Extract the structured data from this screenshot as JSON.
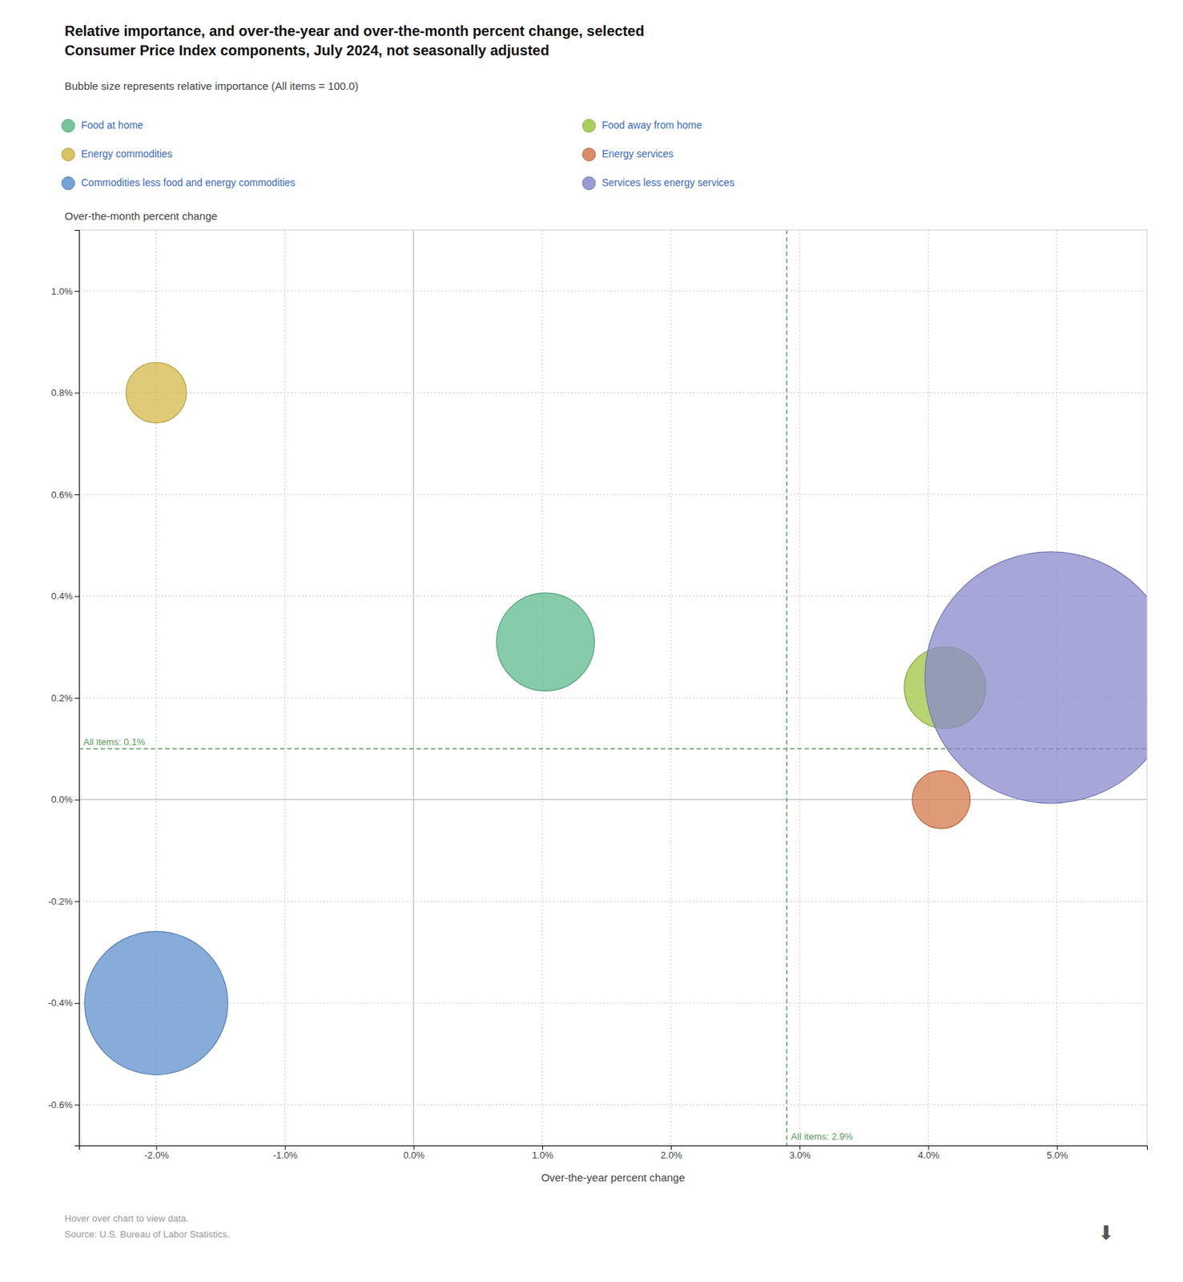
{
  "chart_data": {
    "type": "bubble",
    "title": "Relative importance, and over-the-year and over-the-month percent change, selected\nConsumer Price Index components, July 2024, not seasonally adjusted",
    "subtitle": "Bubble size represents relative importance (All items = 100.0)",
    "xlabel": "Over-the-year percent change",
    "ylabel": "Over-the-month percent change",
    "series": [
      {
        "name": "Food at home",
        "color": "#5fbb8e",
        "x": [
          1.025
        ],
        "values": [
          0.31
        ],
        "sizes": [
          8.703
        ]
      },
      {
        "name": "Food away from home",
        "color": "#9dc543",
        "x": [
          4.13
        ],
        "values": [
          0.22
        ],
        "sizes": [
          6.038
        ]
      },
      {
        "name": "Energy commodities",
        "color": "#d4b84a",
        "x": [
          -2.0
        ],
        "values": [
          0.8
        ],
        "sizes": [
          3.325
        ]
      },
      {
        "name": "Energy services",
        "color": "#d4784a",
        "x": [
          4.1
        ],
        "values": [
          0.0
        ],
        "sizes": [
          3.045
        ]
      },
      {
        "name": "Commodities less food and energy commodities",
        "color": "#6090cc",
        "x": [
          -2.0
        ],
        "values": [
          -0.4
        ],
        "sizes": [
          18.621
        ]
      },
      {
        "name": "Services less energy services",
        "color": "#8888cc",
        "x": [
          4.95
        ],
        "values": [
          0.24
        ],
        "sizes": [
          57.367
        ]
      }
    ],
    "annotations": [
      {
        "label": "All items: 2.9%",
        "x": 2.9,
        "color": "#5a9a5a"
      },
      {
        "label": "All items: 0.1%",
        "y": 0.1,
        "color": "#5a9a5a"
      }
    ],
    "xlim": [
      -2.6,
      5.7
    ],
    "ylim": [
      -0.68,
      1.12
    ],
    "xticks": [
      {
        "value": -2.0,
        "label": "-2.0%"
      },
      {
        "value": -1.0,
        "label": "-1.0%"
      },
      {
        "value": 0.0,
        "label": "0.0%"
      },
      {
        "value": 1.0,
        "label": "1.0%"
      },
      {
        "value": 2.0,
        "label": "2.0%"
      },
      {
        "value": 3.0,
        "label": "3.0%"
      },
      {
        "value": 4.0,
        "label": "4.0%"
      },
      {
        "value": 5.0,
        "label": "5.0%"
      }
    ],
    "yticks": [
      {
        "value": -0.6,
        "label": "-0.6%"
      },
      {
        "value": -0.4,
        "label": "-0.4%"
      },
      {
        "value": -0.2,
        "label": "-0.2%"
      },
      {
        "value": 0.0,
        "label": "0.0%"
      },
      {
        "value": 0.2,
        "label": "0.2%"
      },
      {
        "value": 0.4,
        "label": "0.4%"
      },
      {
        "value": 0.6,
        "label": "0.6%"
      },
      {
        "value": 0.8,
        "label": "0.8%"
      },
      {
        "value": 1.0,
        "label": "1.0%"
      }
    ],
    "grid": true,
    "legend": "top",
    "footer": [
      "Hover over chart to view data.",
      "Source: U.S. Bureau of Labor Statistics."
    ],
    "icon": "⬇"
  }
}
